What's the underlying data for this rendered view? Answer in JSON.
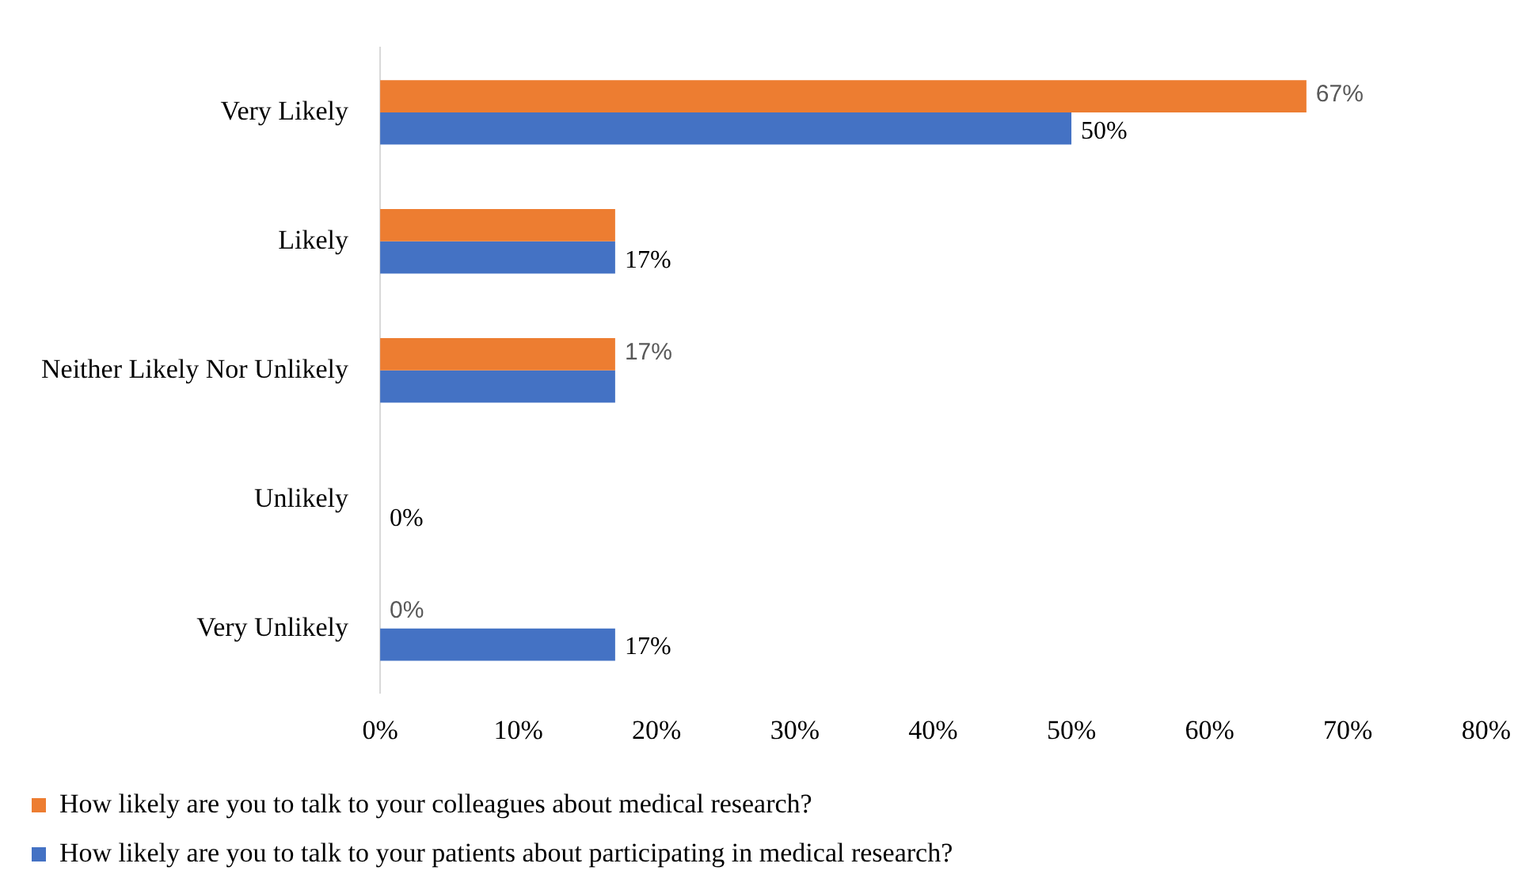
{
  "chart_data": {
    "type": "bar",
    "orientation": "horizontal",
    "categories": [
      "Very Likely",
      "Likely",
      "Neither Likely Nor Unlikely",
      "Unlikely",
      "Very Unlikely"
    ],
    "series": [
      {
        "name": "How likely are you to talk to your colleagues about medical research?",
        "color": "#ed7d31",
        "values": [
          67,
          17,
          17,
          0,
          0
        ],
        "value_labels": [
          "67%",
          null,
          "17%",
          null,
          "0%"
        ]
      },
      {
        "name": "How likely are you to talk to your patients about participating in medical research?",
        "color": "#4472c4",
        "values": [
          50,
          17,
          17,
          0,
          17
        ],
        "value_labels": [
          "50%",
          "17%",
          null,
          "0%",
          "17%"
        ]
      }
    ],
    "xlim": [
      0,
      80
    ],
    "xticks": [
      {
        "value": 0,
        "label": "0%"
      },
      {
        "value": 10,
        "label": "10%"
      },
      {
        "value": 20,
        "label": "20%"
      },
      {
        "value": 30,
        "label": "30%"
      },
      {
        "value": 40,
        "label": "40%"
      },
      {
        "value": 50,
        "label": "50%"
      },
      {
        "value": 60,
        "label": "60%"
      },
      {
        "value": 70,
        "label": "70%"
      },
      {
        "value": 80,
        "label": "80%"
      }
    ],
    "grid": false,
    "legend": "bottom"
  }
}
